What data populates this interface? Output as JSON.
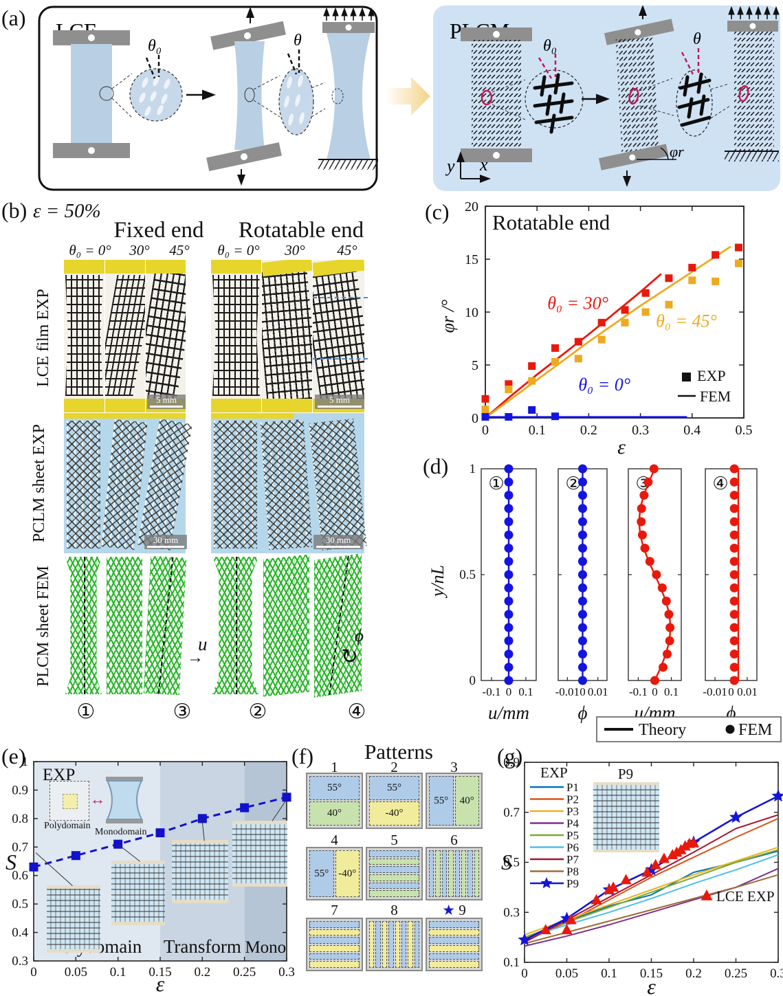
{
  "panel_a": {
    "label": "(a)",
    "lce_title": "LCE",
    "plcm_title": "PLCM",
    "theta0": "θ₀",
    "theta": "θ",
    "phi_r": "φr",
    "axis_x": "x",
    "axis_y": "y"
  },
  "panel_b": {
    "label": "(b)",
    "strain_label": "ε = 50%",
    "group_headers": [
      "Fixed end",
      "Rotatable end"
    ],
    "angle_labels": [
      "θ₀ = 0°",
      "30°",
      "45°"
    ],
    "row_labels": [
      "LCE film EXP",
      "PCLM sheet EXP",
      "PLCM sheet FEM"
    ],
    "scale_bar_lce": "5 mm",
    "scale_bar_pclm": "30 mm",
    "state_marks": [
      "①",
      "③",
      "②",
      "④"
    ],
    "u_annotation": "u",
    "u_arrow": "→",
    "phi_annotation": "ϕ",
    "phi_arrow": "↻"
  },
  "panel_c_label": "(c)",
  "panel_d_label": "(d)",
  "panel_e_label": "(e)",
  "panel_f_label": "(f)",
  "panel_g_label": "(g)",
  "patterns": {
    "title": "Patterns",
    "palette": {
      "blue": "#aecbe8",
      "green": "#c8e2ae",
      "yellow": "#f1ec9b"
    },
    "items": [
      {
        "num": "1",
        "layout": "h2",
        "cells": [
          {
            "color": "blue",
            "label": "55°"
          },
          {
            "color": "green",
            "label": "40°"
          }
        ]
      },
      {
        "num": "2",
        "layout": "h2",
        "cells": [
          {
            "color": "blue",
            "label": "55°"
          },
          {
            "color": "yellow",
            "label": "-40°"
          }
        ]
      },
      {
        "num": "3",
        "layout": "v2",
        "cells": [
          {
            "color": "blue",
            "label": "55°"
          },
          {
            "color": "green",
            "label": "40°"
          }
        ]
      },
      {
        "num": "4",
        "layout": "v2",
        "cells": [
          {
            "color": "blue",
            "label": "55°"
          },
          {
            "color": "yellow",
            "label": "-40°"
          }
        ]
      },
      {
        "num": "5",
        "layout": "hstripes",
        "colors": [
          "blue",
          "green"
        ],
        "count": 6
      },
      {
        "num": "6",
        "layout": "vstripes",
        "colors": [
          "blue",
          "green"
        ],
        "count": 8
      },
      {
        "num": "7",
        "layout": "hstripes",
        "colors": [
          "blue",
          "yellow"
        ],
        "count": 6
      },
      {
        "num": "8",
        "layout": "vstripes",
        "colors": [
          "yellow",
          "blue"
        ],
        "count": 8
      },
      {
        "num": "9",
        "layout": "hstripes",
        "colors": [
          "blue",
          "yellow"
        ],
        "count": 6,
        "star": "★"
      }
    ]
  },
  "chart_data": [
    {
      "id": "c",
      "type": "scatter",
      "title": "Rotatable end",
      "xlabel": "ε",
      "ylabel": "φr /°",
      "xlim": [
        0,
        0.5
      ],
      "ylim": [
        0,
        20
      ],
      "xticks": [
        0,
        0.1,
        0.2,
        0.3,
        0.4,
        0.5
      ],
      "yticks": [
        0,
        5,
        10,
        15,
        20
      ],
      "series": [
        {
          "name": "θ₀ = 30° FEM",
          "color": "#e8190c",
          "marker": "line",
          "x": [
            0,
            0.05,
            0.1,
            0.15,
            0.2,
            0.25,
            0.3,
            0.34
          ],
          "y": [
            0,
            2.1,
            4.1,
            6.0,
            7.9,
            9.9,
            11.9,
            13.6
          ]
        },
        {
          "name": "θ₀ = 45° FEM",
          "color": "#edaa20",
          "marker": "line",
          "x": [
            0,
            0.1,
            0.2,
            0.3,
            0.4,
            0.475
          ],
          "y": [
            0,
            3.6,
            7.2,
            10.6,
            13.8,
            16.2
          ]
        },
        {
          "name": "θ₀ = 0° FEM",
          "color": "#1414e0",
          "marker": "line",
          "x": [
            0,
            0.39
          ],
          "y": [
            0.08,
            0.08
          ]
        },
        {
          "name": "θ₀ = 30° EXP",
          "color": "#e8190c",
          "marker": "square",
          "x": [
            0,
            0.045,
            0.09,
            0.135,
            0.18,
            0.225,
            0.27,
            0.31,
            0.355,
            0.4,
            0.445,
            0.49
          ],
          "y": [
            1.8,
            3.2,
            4.9,
            6.6,
            7.2,
            9.0,
            10.2,
            11.8,
            13.2,
            14.2,
            15.4,
            16.1
          ]
        },
        {
          "name": "θ₀ = 45° EXP",
          "color": "#edaa20",
          "marker": "square",
          "x": [
            0,
            0.045,
            0.09,
            0.135,
            0.18,
            0.225,
            0.27,
            0.31,
            0.355,
            0.4,
            0.445,
            0.49
          ],
          "y": [
            0.8,
            2.7,
            3.5,
            5.3,
            5.6,
            7.4,
            9.0,
            10.0,
            10.7,
            13.0,
            12.9,
            14.6
          ]
        },
        {
          "name": "θ₀ = 0° EXP",
          "color": "#1414e0",
          "marker": "square",
          "x": [
            0,
            0.045,
            0.09,
            0.135
          ],
          "y": [
            0.1,
            0.1,
            0.75,
            0.15
          ]
        }
      ],
      "annotations": [
        {
          "text": "θ₀ = 30°",
          "color": "#e8190c",
          "x": 0.12,
          "y": 10.3
        },
        {
          "text": "θ₀ = 45°",
          "color": "#edaa20",
          "x": 0.33,
          "y": 8.6
        },
        {
          "text": "θ₀ = 0°",
          "color": "#1414e0",
          "x": 0.18,
          "y": 2.6
        }
      ],
      "legend": [
        {
          "label": "EXP",
          "type": "square"
        },
        {
          "label": "FEM",
          "type": "line"
        }
      ]
    },
    {
      "id": "d",
      "type": "profile",
      "ylabel": "y/nL",
      "yticks": [
        0,
        0.5,
        1
      ],
      "legend": [
        {
          "label": "Theory",
          "type": "line"
        },
        {
          "label": "FEM",
          "type": "dot"
        }
      ],
      "y": [
        0,
        0.0625,
        0.125,
        0.1875,
        0.25,
        0.3125,
        0.375,
        0.4375,
        0.5,
        0.5625,
        0.625,
        0.6875,
        0.75,
        0.8125,
        0.875,
        0.9375,
        1
      ],
      "subplots": [
        {
          "mark": "①",
          "xlabel": "u/mm",
          "xticks": [
            -0.1,
            0,
            0.1
          ],
          "xlim": [
            -0.16,
            0.16
          ],
          "color": "#1414e0",
          "dots": [
            0,
            0,
            0,
            0,
            0,
            0,
            0,
            0,
            0,
            0,
            0,
            0,
            0,
            0,
            0,
            0,
            0
          ],
          "line": [
            0,
            0,
            0,
            0,
            0,
            0,
            0,
            0,
            0,
            0,
            0,
            0,
            0,
            0,
            0,
            0,
            0
          ]
        },
        {
          "mark": "②",
          "xlabel": "ϕ",
          "xticks": [
            -0.01,
            0,
            0.01
          ],
          "xlim": [
            -0.016,
            0.016
          ],
          "color": "#1414e0",
          "dots": [
            0,
            0,
            0,
            0,
            0,
            0,
            0,
            0,
            0,
            0,
            0,
            0,
            0,
            0,
            0,
            0,
            0
          ],
          "line": [
            0,
            0,
            0,
            0,
            0,
            0,
            0,
            0,
            0,
            0,
            0,
            0,
            0,
            0,
            0,
            0,
            0
          ]
        },
        {
          "mark": "③",
          "xlabel": "u/mm",
          "xticks": [
            -0.1,
            0,
            0.1
          ],
          "xlim": [
            -0.16,
            0.16
          ],
          "color": "#e8190c",
          "dots": [
            0,
            0.05,
            0.075,
            0.09,
            0.092,
            0.085,
            0.07,
            0.045,
            0.01,
            -0.03,
            -0.06,
            -0.075,
            -0.082,
            -0.08,
            -0.065,
            -0.04,
            -0.005
          ],
          "line": [
            0,
            0.036,
            0.067,
            0.088,
            0.095,
            0.088,
            0.067,
            0.036,
            0,
            -0.036,
            -0.067,
            -0.088,
            -0.095,
            -0.088,
            -0.067,
            -0.036,
            0
          ]
        },
        {
          "mark": "④",
          "xlabel": "ϕ",
          "xticks": [
            -0.01,
            0,
            0.01
          ],
          "xlim": [
            -0.016,
            0.016
          ],
          "color": "#e8190c",
          "dots": [
            0.002,
            0.002,
            0.002,
            0.002,
            0.002,
            0.002,
            0.002,
            0.002,
            0.002,
            0.002,
            0.002,
            0.002,
            0.002,
            0.002,
            0.002,
            0.002,
            0.002
          ],
          "line": [
            0.0045,
            0.0045,
            0.0045,
            0.0045,
            0.0045,
            0.0045,
            0.0045,
            0.0045,
            0.0045,
            0.0045,
            0.0045,
            0.0045,
            0.0045,
            0.0045,
            0.0045,
            0.0045,
            0.0045
          ]
        }
      ]
    },
    {
      "id": "e",
      "type": "scatter",
      "xlabel": "ε",
      "ylabel": "S",
      "xlim": [
        0,
        0.3
      ],
      "ylim": [
        0.3,
        1
      ],
      "xticks": [
        0,
        0.05,
        0.1,
        0.15,
        0.2,
        0.25,
        0.3
      ],
      "yticks": [
        0.3,
        0.4,
        0.5,
        0.6,
        0.7,
        0.8,
        0.9,
        1
      ],
      "regions": [
        {
          "label": "Polydomain",
          "from": 0,
          "to": 0.15,
          "color": "#dfe7f0"
        },
        {
          "label": "Transform",
          "from": 0.15,
          "to": 0.25,
          "color": "#c9d5e2"
        },
        {
          "label": "Mono",
          "from": 0.25,
          "to": 0.3,
          "color": "#b5c5d6"
        }
      ],
      "series": [
        {
          "name": "EXP",
          "color": "#1111cc",
          "marker": "square",
          "dash": true,
          "x": [
            0,
            0.05,
            0.1,
            0.15,
            0.2,
            0.25,
            0.3
          ],
          "y": [
            0.63,
            0.67,
            0.71,
            0.75,
            0.8,
            0.838,
            0.875
          ]
        }
      ],
      "inset": {
        "exp": "EXP",
        "polydomain": "Polydomain",
        "monodomain": "Monodomain",
        "arrow": "↔"
      }
    },
    {
      "id": "g",
      "type": "multiline",
      "xlabel": "ε",
      "ylabel": "S",
      "xlim": [
        0,
        0.3
      ],
      "ylim": [
        0.1,
        0.9
      ],
      "xticks": [
        0,
        0.05,
        0.1,
        0.15,
        0.2,
        0.25,
        0.3
      ],
      "yticks": [
        0.1,
        0.3,
        0.5,
        0.7,
        0.9
      ],
      "legend_title": "EXP",
      "inset_label": "P9",
      "x": [
        0,
        0.05,
        0.1,
        0.15,
        0.2,
        0.25,
        0.3
      ],
      "series": [
        {
          "name": "P1",
          "color": "#0072BD",
          "y": [
            0.19,
            0.265,
            0.325,
            0.37,
            0.46,
            0.5,
            0.545
          ]
        },
        {
          "name": "P2",
          "color": "#D95319",
          "y": [
            0.185,
            0.26,
            0.35,
            0.44,
            0.52,
            0.6,
            0.675
          ]
        },
        {
          "name": "P3",
          "color": "#EDB120",
          "y": [
            0.21,
            0.27,
            0.33,
            0.39,
            0.45,
            0.505,
            0.56
          ]
        },
        {
          "name": "P4",
          "color": "#7E2F8E",
          "y": [
            0.165,
            0.205,
            0.25,
            0.3,
            0.35,
            0.4,
            0.475
          ]
        },
        {
          "name": "P5",
          "color": "#77AC30",
          "y": [
            0.2,
            0.26,
            0.32,
            0.38,
            0.44,
            0.5,
            0.55
          ]
        },
        {
          "name": "P6",
          "color": "#4DBEEE",
          "y": [
            0.195,
            0.25,
            0.3,
            0.355,
            0.415,
            0.47,
            0.53
          ]
        },
        {
          "name": "P7",
          "color": "#A2142F",
          "y": [
            0.18,
            0.27,
            0.36,
            0.45,
            0.54,
            0.635,
            0.69
          ]
        },
        {
          "name": "P8",
          "color": "#9E6B33",
          "y": [
            0.175,
            0.22,
            0.265,
            0.31,
            0.355,
            0.4,
            0.45
          ]
        },
        {
          "name": "P9",
          "color": "#1515D6",
          "marker": "star",
          "y": [
            0.19,
            0.275,
            0.39,
            0.47,
            0.58,
            0.68,
            0.765
          ]
        }
      ],
      "scatter": {
        "name": "LCE EXP",
        "color": "#E8190C",
        "marker": "triangle",
        "x": [
          0.025,
          0.05,
          0.055,
          0.085,
          0.1,
          0.105,
          0.12,
          0.145,
          0.155,
          0.165,
          0.175,
          0.18,
          0.185,
          0.19,
          0.195,
          0.2
        ],
        "y": [
          0.23,
          0.23,
          0.27,
          0.35,
          0.39,
          0.4,
          0.43,
          0.46,
          0.49,
          0.515,
          0.53,
          0.54,
          0.55,
          0.565,
          0.575,
          0.578
        ]
      }
    }
  ]
}
